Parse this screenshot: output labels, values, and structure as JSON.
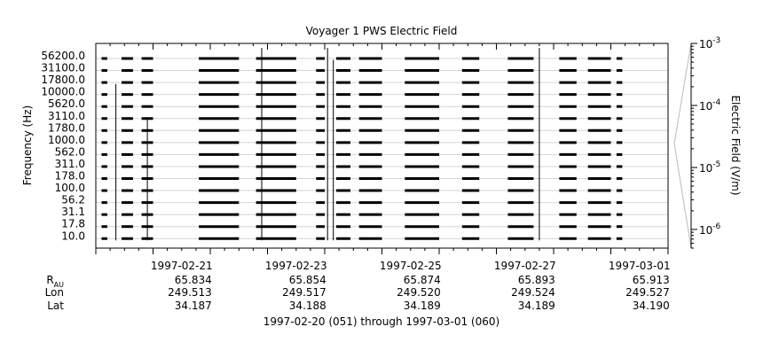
{
  "chart_data": {
    "type": "heatmap",
    "title": "Voyager 1 PWS Electric Field",
    "ylabel": "Frequency (Hz)",
    "colorbar_label": "Electric Field (V/m)",
    "y_channels": [
      "10.0",
      "17.8",
      "31.1",
      "56.2",
      "100.0",
      "178.0",
      "311.0",
      "562.0",
      "1000.0",
      "1780.0",
      "3110.0",
      "5620.0",
      "10000.0",
      "17800.0",
      "31100.0",
      "56200.0"
    ],
    "x_range_days": [
      "1997-02-20",
      "1997-03-01"
    ],
    "x_ticks": [
      "1997-02-21",
      "1997-02-23",
      "1997-02-25",
      "1997-02-27",
      "1997-03-01"
    ],
    "colorbar_ticks": [
      {
        "base": "10",
        "exp": "-3"
      },
      {
        "base": "10",
        "exp": "-4"
      },
      {
        "base": "10",
        "exp": "-5"
      },
      {
        "base": "10",
        "exp": "-6"
      }
    ],
    "colorbar_scale": "log",
    "colorbar_range": [
      5e-07,
      0.001
    ],
    "data_segments_days": [
      [
        0.1,
        0.2
      ],
      [
        0.45,
        0.65
      ],
      [
        0.8,
        1.0
      ],
      [
        1.8,
        2.5
      ],
      [
        2.8,
        3.5
      ],
      [
        3.85,
        4.0
      ],
      [
        4.2,
        4.45
      ],
      [
        4.6,
        5.0
      ],
      [
        5.4,
        6.0
      ],
      [
        6.4,
        6.7
      ],
      [
        7.2,
        7.65
      ],
      [
        8.1,
        8.4
      ],
      [
        8.6,
        9.0
      ],
      [
        9.1,
        9.2
      ]
    ],
    "spikes": [
      {
        "day": 0.35,
        "top_channel": 12
      },
      {
        "day": 0.9,
        "top_channel": 9
      },
      {
        "day": 2.9,
        "top_channel": 15
      },
      {
        "day": 4.05,
        "top_channel": 15
      },
      {
        "day": 4.15,
        "top_channel": 14
      },
      {
        "day": 7.75,
        "top_channel": 15
      }
    ],
    "ephemeris": [
      {
        "date": "1997-02-21",
        "rau": "65.834",
        "lon": "249.513",
        "lat": "34.187"
      },
      {
        "date": "1997-02-23",
        "rau": "65.854",
        "lon": "249.517",
        "lat": "34.188"
      },
      {
        "date": "1997-02-25",
        "rau": "65.874",
        "lon": "249.520",
        "lat": "34.189"
      },
      {
        "date": "1997-02-27",
        "rau": "65.893",
        "lon": "249.524",
        "lat": "34.189"
      },
      {
        "date": "1997-03-01",
        "rau": "65.913",
        "lon": "249.527",
        "lat": "34.190"
      }
    ],
    "row_labels": {
      "rau_base": "R",
      "rau_sub": "AU",
      "lon": "Lon",
      "lat": "Lat"
    },
    "date_range_caption": "1997-02-20 (051) through 1997-03-01 (060)"
  }
}
